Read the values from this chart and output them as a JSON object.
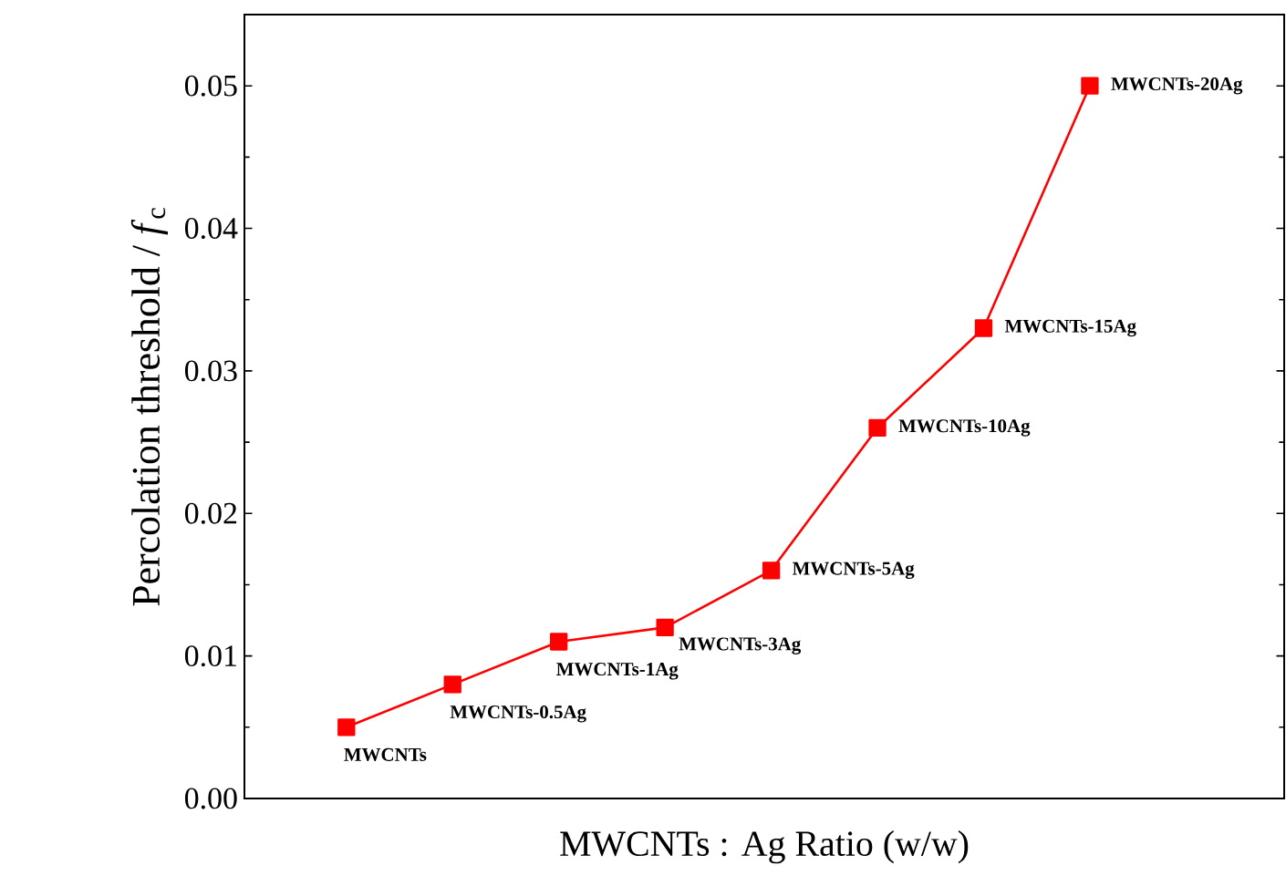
{
  "chart_data": {
    "type": "line",
    "xlabel": "MWCNTs : Ag Ratio (w/w)",
    "ylabel": "Percolation threshold / *f*$_{c}$",
    "categories": [
      null,
      null,
      null,
      null,
      null,
      null,
      null,
      null
    ],
    "series": [
      {
        "color": "#ff0000",
        "values": [
          0.005,
          0.008,
          0.011,
          0.012,
          0.016,
          0.026,
          0.033,
          0.05
        ],
        "value_labels": [
          "MWCNTs",
          "MWCNTs-0.5Ag",
          "MWCNTs-1Ag",
          "MWCNTs-3Ag",
          "MWCNTs-5Ag",
          "MWCNTs-10Ag",
          "MWCNTs-15Ag",
          "MWCNTs-20Ag"
        ]
      }
    ],
    "ylim": [
      0,
      0.055
    ],
    "yticks": [
      {
        "value": 0,
        "label": "0.00"
      },
      {
        "value": 0.01,
        "label": "0.01"
      },
      {
        "value": 0.02,
        "label": "0.02"
      },
      {
        "value": 0.03,
        "label": "0.03"
      },
      {
        "value": 0.04,
        "label": "0.04"
      },
      {
        "value": 0.05,
        "label": "0.05"
      }
    ],
    "tick_labels": "y",
    "grid": false,
    "marker": "square",
    "line_style": "solid"
  }
}
